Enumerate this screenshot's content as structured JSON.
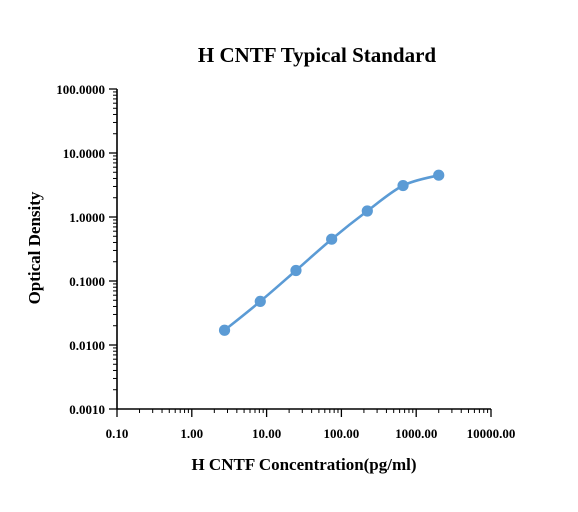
{
  "chart_data": {
    "type": "line",
    "title": "H CNTF Typical Standard",
    "xlabel": "H CNTF Concentration(pg/ml)",
    "ylabel": "Optical Density",
    "x_scale": "log",
    "y_scale": "log",
    "xlim": [
      0.1,
      10000
    ],
    "ylim": [
      0.001,
      100
    ],
    "x_ticks": [
      0.1,
      1,
      10,
      100,
      1000,
      10000
    ],
    "x_tick_labels": [
      "0.10",
      "1.00",
      "10.00",
      "100.00",
      "1000.00",
      "10000.00"
    ],
    "y_ticks": [
      0.001,
      0.01,
      0.1,
      1,
      10,
      100
    ],
    "y_tick_labels": [
      "0.0010",
      "0.0100",
      "0.1000",
      "1.0000",
      "10.0000",
      "100.0000"
    ],
    "grid": false,
    "series": [
      {
        "color": "#5b9bd5",
        "x": [
          2.74,
          8.23,
          24.7,
          74.1,
          222,
          667,
          2000
        ],
        "y": [
          0.017,
          0.048,
          0.146,
          0.45,
          1.24,
          3.1,
          4.5
        ]
      }
    ]
  }
}
